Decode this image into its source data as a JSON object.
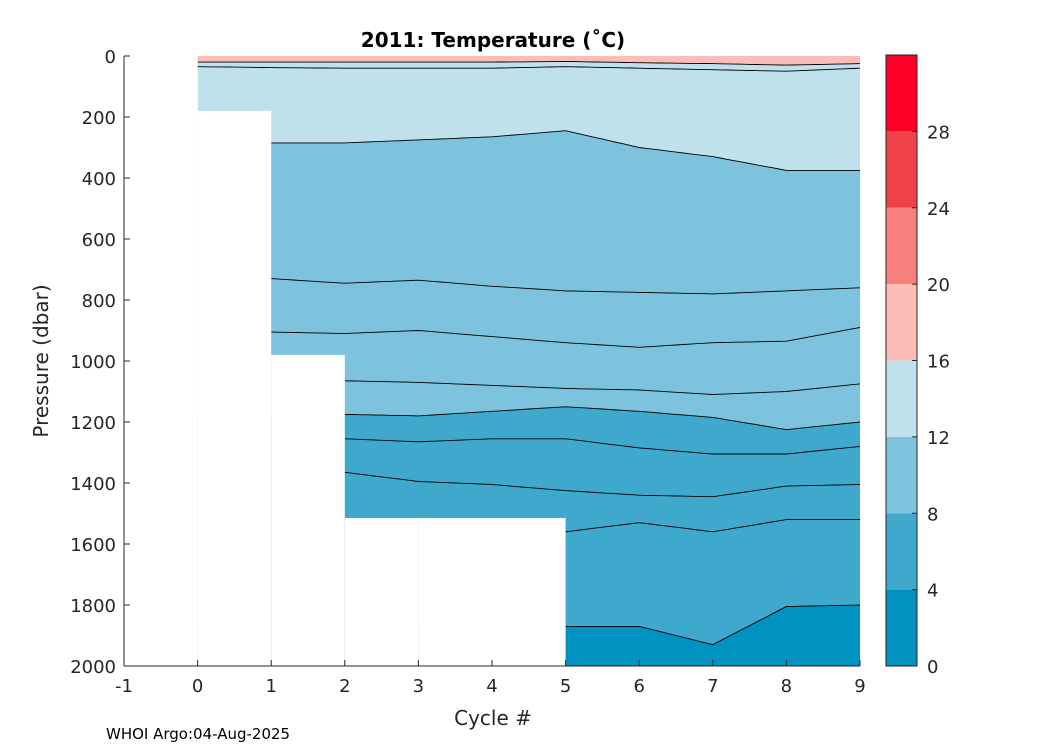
{
  "chart_data": {
    "type": "contour",
    "title": "2011:  Temperature (˚C)",
    "xlabel": "Cycle #",
    "ylabel": "Pressure (dbar)",
    "xlim": [
      -1,
      9
    ],
    "ylim": [
      0,
      2000
    ],
    "y_reversed": true,
    "x_ticks": [
      -1,
      0,
      1,
      2,
      3,
      4,
      5,
      6,
      7,
      8,
      9
    ],
    "x_tick_labels": [
      "-1",
      "0",
      "1",
      "2",
      "3",
      "4",
      "5",
      "6",
      "7",
      "8",
      "9"
    ],
    "y_ticks": [
      0,
      200,
      400,
      600,
      800,
      1000,
      1200,
      1400,
      1600,
      1800,
      2000
    ],
    "y_tick_labels": [
      "0",
      "200",
      "400",
      "600",
      "800",
      "1000",
      "1200",
      "1400",
      "1600",
      "1800",
      "2000"
    ],
    "profiles": [
      {
        "cycle": 0,
        "max_pressure": 180
      },
      {
        "cycle": 1,
        "max_pressure": 980
      },
      {
        "cycle": 2,
        "max_pressure": 1515
      },
      {
        "cycle": 3,
        "max_pressure": 1515
      },
      {
        "cycle": 4,
        "max_pressure": 1515
      },
      {
        "cycle": 5,
        "max_pressure": 2000
      },
      {
        "cycle": 6,
        "max_pressure": 2000
      },
      {
        "cycle": 7,
        "max_pressure": 2000
      },
      {
        "cycle": 8,
        "max_pressure": 2000
      },
      {
        "cycle": 9,
        "max_pressure": 2000
      }
    ],
    "isotherms": [
      {
        "x": [
          0,
          1,
          2,
          3,
          4,
          5,
          6,
          7,
          8,
          9
        ],
        "p": [
          20,
          20,
          20,
          20,
          20,
          18,
          22,
          25,
          30,
          25
        ],
        "band_above": "16-20",
        "band_below": "12-16"
      },
      {
        "x": [
          0,
          1,
          2,
          3,
          4,
          5,
          6,
          7,
          8,
          9
        ],
        "p": [
          35,
          38,
          40,
          40,
          40,
          35,
          40,
          45,
          50,
          40
        ],
        "band_above": "16-20",
        "band_below": "12-16"
      },
      {
        "x": [
          1,
          2,
          3,
          4,
          5,
          6,
          7,
          8,
          9
        ],
        "p": [
          285,
          285,
          275,
          265,
          245,
          300,
          330,
          375,
          375
        ],
        "band_above": "12-16",
        "band_below": "8-12"
      },
      {
        "x": [
          1,
          2,
          3,
          4,
          5,
          6,
          7,
          8,
          9
        ],
        "p": [
          730,
          745,
          735,
          755,
          770,
          775,
          780,
          770,
          760
        ]
      },
      {
        "x": [
          1,
          2,
          3,
          4,
          5,
          6,
          7,
          8,
          9
        ],
        "p": [
          905,
          910,
          900,
          920,
          940,
          955,
          940,
          935,
          890
        ]
      },
      {
        "x": [
          2,
          3,
          4,
          5,
          6,
          7,
          8,
          9
        ],
        "p": [
          1065,
          1070,
          1080,
          1090,
          1095,
          1110,
          1100,
          1075
        ]
      },
      {
        "x": [
          2,
          3,
          4,
          5,
          6,
          7,
          8,
          9
        ],
        "p": [
          1175,
          1180,
          1165,
          1150,
          1165,
          1185,
          1225,
          1200
        ],
        "band_above": "8-12",
        "band_below": "4-8"
      },
      {
        "x": [
          2,
          3,
          4,
          5,
          6,
          7,
          8,
          9
        ],
        "p": [
          1255,
          1265,
          1255,
          1255,
          1285,
          1305,
          1305,
          1280
        ]
      },
      {
        "x": [
          2,
          3,
          4,
          5,
          6,
          7,
          8,
          9
        ],
        "p": [
          1365,
          1395,
          1405,
          1425,
          1440,
          1445,
          1410,
          1405
        ]
      },
      {
        "x": [
          5,
          6,
          7,
          8,
          9
        ],
        "p": [
          1560,
          1530,
          1560,
          1520,
          1520
        ]
      },
      {
        "x": [
          5,
          6,
          7,
          8,
          9
        ],
        "p": [
          1870,
          1870,
          1930,
          1805,
          1800
        ],
        "band_above": "4-8",
        "band_below": "0-4"
      }
    ],
    "colorbar": {
      "ticks": [
        0,
        4,
        8,
        12,
        16,
        20,
        24,
        28
      ],
      "tick_labels": [
        "0",
        "4",
        "8",
        "12",
        "16",
        "20",
        "24",
        "28"
      ],
      "range": [
        0,
        32
      ],
      "levels": [
        {
          "range": "0-4",
          "color": "#0093c1"
        },
        {
          "range": "4-8",
          "color": "#3fa9cd"
        },
        {
          "range": "8-12",
          "color": "#7ec3dd"
        },
        {
          "range": "12-16",
          "color": "#bfe1ec"
        },
        {
          "range": "16-20",
          "color": "#fcbcb7"
        },
        {
          "range": "20-24",
          "color": "#f77f7c"
        },
        {
          "range": "24-28",
          "color": "#f04249"
        },
        {
          "range": "28-32",
          "color": "#ff0029"
        }
      ]
    }
  },
  "footer": {
    "credit": "WHOI Argo:04-Aug-2025"
  }
}
